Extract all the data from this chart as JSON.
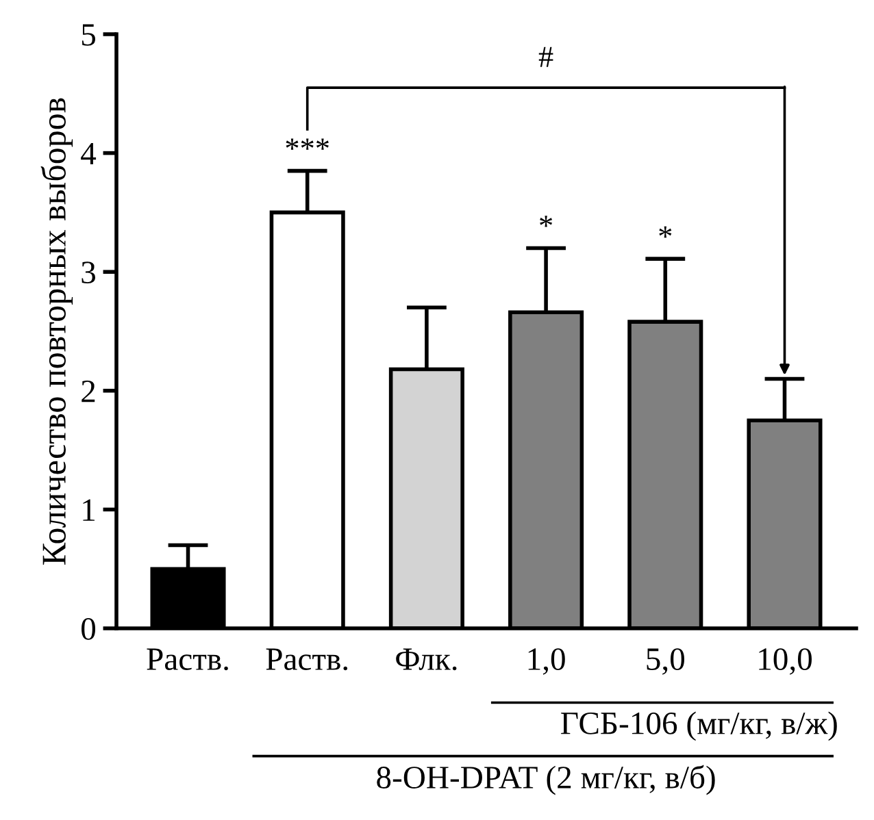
{
  "chart_data": {
    "type": "bar",
    "ylabel": "Количество повторных выборов",
    "categories": [
      "Раств.",
      "Раств.",
      "Флк.",
      "1,0",
      "5,0",
      "10,0"
    ],
    "values": [
      0.5,
      3.5,
      2.18,
      2.66,
      2.58,
      1.75
    ],
    "colors": [
      "#000000",
      "#ffffff",
      "#d3d3d3",
      "#808080",
      "#808080",
      "#808080"
    ],
    "errors": [
      [
        0.5,
        0.7
      ],
      [
        3.5,
        3.85
      ],
      [
        2.18,
        2.7
      ],
      [
        2.66,
        3.2
      ],
      [
        2.58,
        3.11
      ],
      [
        1.75,
        2.1
      ]
    ],
    "ylim": [
      0,
      5
    ],
    "yticks": [
      0,
      1,
      2,
      3,
      4,
      5
    ],
    "grid": false,
    "legend": false,
    "annotations": [
      "***",
      "*",
      "*",
      "#",
      "ГСБ-106 (мг/кг, в/ж)",
      "8-OH-DPAT (2 мг/кг, в/б)"
    ]
  }
}
